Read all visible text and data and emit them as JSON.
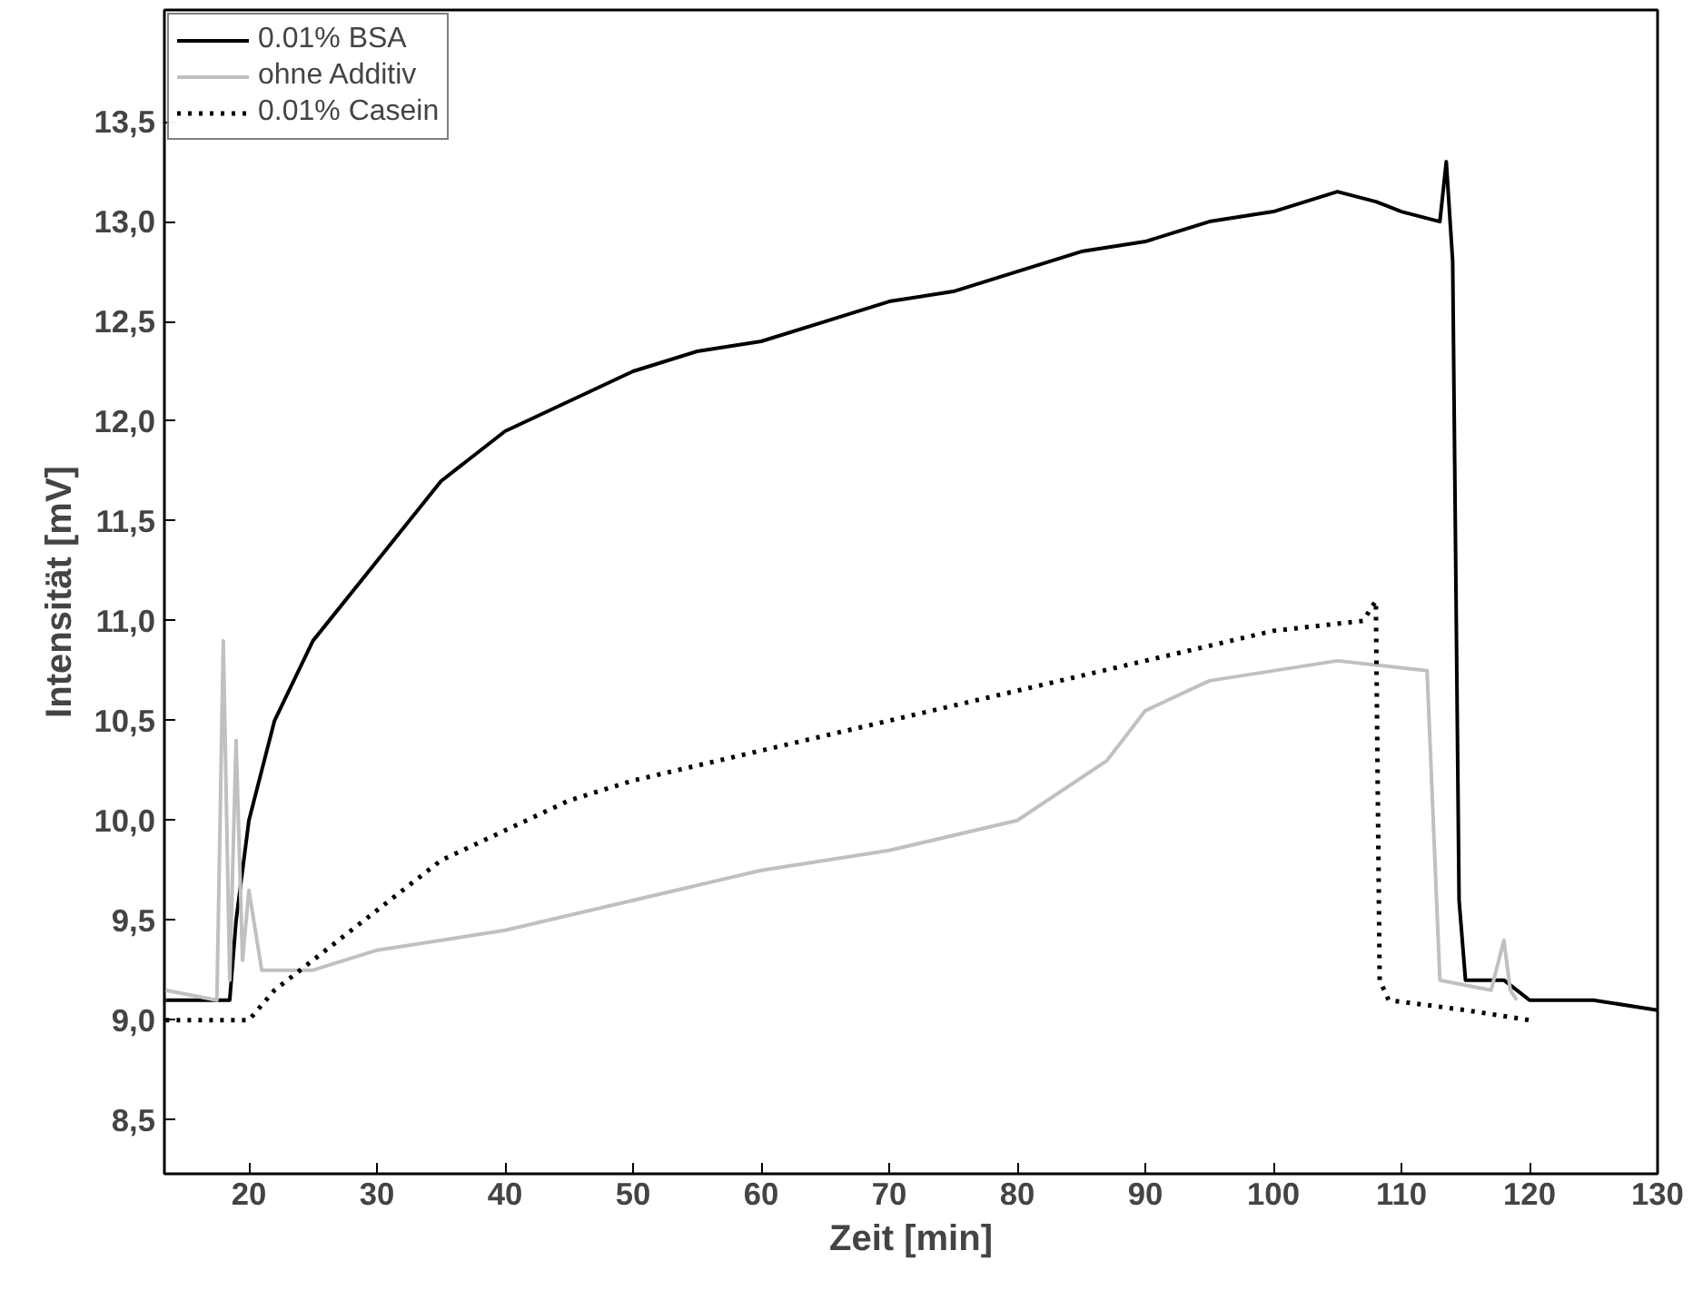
{
  "chart_data": {
    "type": "line",
    "xlabel": "Zeit [min]",
    "ylabel": "Intensität [mV]",
    "xlim": [
      13.4,
      130
    ],
    "ylim": [
      8.23,
      14.06
    ],
    "xticks": [
      20,
      30,
      40,
      50,
      60,
      70,
      80,
      90,
      100,
      110,
      120,
      130
    ],
    "yticks": [
      {
        "value": 8.5,
        "label": "8,5"
      },
      {
        "value": 9.0,
        "label": "9,0"
      },
      {
        "value": 9.5,
        "label": "9,5"
      },
      {
        "value": 10.0,
        "label": "10,0"
      },
      {
        "value": 10.5,
        "label": "10,5"
      },
      {
        "value": 11.0,
        "label": "11,0"
      },
      {
        "value": 11.5,
        "label": "11,5"
      },
      {
        "value": 12.0,
        "label": "12,0"
      },
      {
        "value": 12.5,
        "label": "12,5"
      },
      {
        "value": 13.0,
        "label": "13,0"
      },
      {
        "value": 13.5,
        "label": "13,5"
      }
    ],
    "grid": false,
    "legend": "top left",
    "marker": "none",
    "series": [
      {
        "name": "0.01% BSA",
        "color": "#000000",
        "line_style": "solid",
        "x": [
          13.5,
          16,
          18,
          18.5,
          19,
          20,
          22,
          25,
          30,
          35,
          40,
          45,
          50,
          55,
          60,
          65,
          70,
          75,
          80,
          85,
          90,
          95,
          100,
          105,
          108,
          110,
          113,
          113.5,
          114,
          114.5,
          115,
          118,
          120,
          125,
          130
        ],
        "values": [
          9.1,
          9.1,
          9.1,
          9.1,
          9.5,
          10.0,
          10.5,
          10.9,
          11.3,
          11.7,
          11.95,
          12.1,
          12.25,
          12.35,
          12.4,
          12.5,
          12.6,
          12.65,
          12.75,
          12.85,
          12.9,
          13.0,
          13.05,
          13.15,
          13.1,
          13.05,
          13.0,
          13.3,
          12.8,
          9.6,
          9.2,
          9.2,
          9.1,
          9.1,
          9.05
        ]
      },
      {
        "name": "ohne Additiv",
        "color": "#c0c0c0",
        "line_style": "solid",
        "x": [
          13.5,
          17.5,
          18,
          18.5,
          19,
          19.5,
          20,
          21,
          25,
          30,
          40,
          50,
          60,
          70,
          80,
          87,
          90,
          95,
          100,
          105,
          112,
          113,
          117,
          118,
          118.5,
          119
        ],
        "values": [
          9.15,
          9.1,
          10.9,
          9.2,
          10.4,
          9.3,
          9.65,
          9.25,
          9.25,
          9.35,
          9.45,
          9.6,
          9.75,
          9.85,
          10.0,
          10.3,
          10.55,
          10.7,
          10.75,
          10.8,
          10.75,
          9.2,
          9.15,
          9.4,
          9.15,
          9.1
        ]
      },
      {
        "name": "0.01% Casein",
        "color": "#000000",
        "line_style": "dotted",
        "x": [
          13.5,
          19,
          20,
          22,
          25,
          30,
          35,
          40,
          45,
          50,
          60,
          70,
          80,
          90,
          100,
          107,
          108,
          108.3,
          109,
          115,
          120
        ],
        "values": [
          9.0,
          9.0,
          9.0,
          9.15,
          9.3,
          9.55,
          9.8,
          9.95,
          10.1,
          10.2,
          10.35,
          10.5,
          10.65,
          10.8,
          10.95,
          11.0,
          11.1,
          9.2,
          9.1,
          9.05,
          9.0
        ]
      }
    ]
  }
}
